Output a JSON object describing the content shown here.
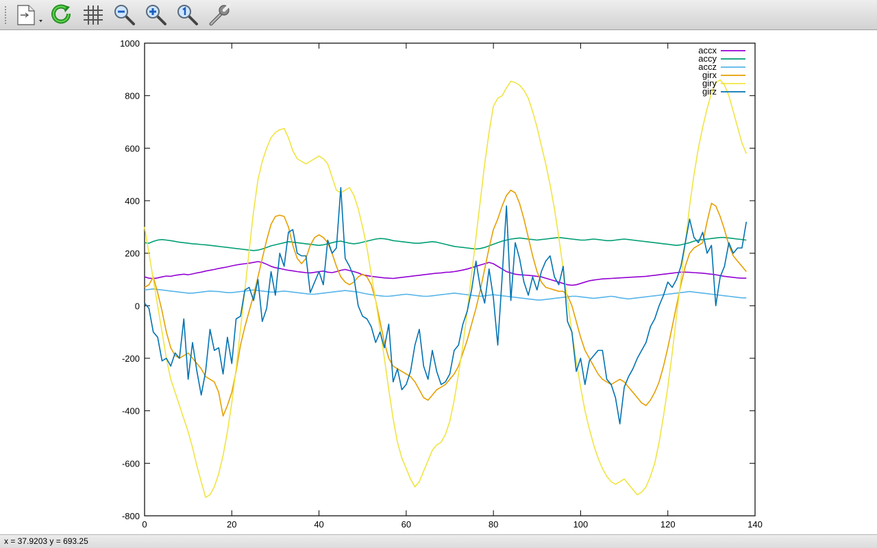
{
  "toolbar": {
    "items": [
      {
        "name": "export-menu-button",
        "icon": "document-export-icon"
      },
      {
        "name": "replot-button",
        "icon": "refresh-icon"
      },
      {
        "name": "grid-toggle-button",
        "icon": "grid-icon"
      },
      {
        "name": "zoom-out-button",
        "icon": "zoom-out-icon"
      },
      {
        "name": "zoom-in-button",
        "icon": "zoom-in-icon"
      },
      {
        "name": "zoom-reset-button",
        "icon": "zoom-original-icon"
      },
      {
        "name": "settings-button",
        "icon": "wrench-icon"
      }
    ]
  },
  "status": {
    "coordinates": "x = 37.9203 y = 693.25"
  },
  "chart_data": {
    "type": "line",
    "title": "",
    "xlabel": "",
    "ylabel": "",
    "xlim": [
      0,
      140
    ],
    "ylim": [
      -800,
      1000
    ],
    "xticks": [
      0,
      20,
      40,
      60,
      80,
      100,
      120,
      140
    ],
    "yticks": [
      -800,
      -600,
      -400,
      -200,
      0,
      200,
      400,
      600,
      800,
      1000
    ],
    "grid": false,
    "legend_position": "top-right",
    "x": [
      0,
      1,
      2,
      3,
      4,
      5,
      6,
      7,
      8,
      9,
      10,
      11,
      12,
      13,
      14,
      15,
      16,
      17,
      18,
      19,
      20,
      21,
      22,
      23,
      24,
      25,
      26,
      27,
      28,
      29,
      30,
      31,
      32,
      33,
      34,
      35,
      36,
      37,
      38,
      39,
      40,
      41,
      42,
      43,
      44,
      45,
      46,
      47,
      48,
      49,
      50,
      51,
      52,
      53,
      54,
      55,
      56,
      57,
      58,
      59,
      60,
      61,
      62,
      63,
      64,
      65,
      66,
      67,
      68,
      69,
      70,
      71,
      72,
      73,
      74,
      75,
      76,
      77,
      78,
      79,
      80,
      81,
      82,
      83,
      84,
      85,
      86,
      87,
      88,
      89,
      90,
      91,
      92,
      93,
      94,
      95,
      96,
      97,
      98,
      99,
      100,
      101,
      102,
      103,
      104,
      105,
      106,
      107,
      108,
      109,
      110,
      111,
      112,
      113,
      114,
      115,
      116,
      117,
      118,
      119,
      120,
      121,
      122,
      123,
      124,
      125,
      126,
      127,
      128,
      129,
      130,
      131,
      132,
      133,
      134,
      135,
      136,
      137,
      138
    ],
    "series": [
      {
        "name": "accx",
        "color": "#9400d3",
        "values": [
          110,
          105,
          103,
          106,
          110,
          113,
          112,
          116,
          118,
          120,
          118,
          121,
          125,
          128,
          132,
          135,
          138,
          142,
          145,
          148,
          152,
          155,
          158,
          160,
          162,
          165,
          168,
          165,
          158,
          150,
          145,
          142,
          138,
          135,
          133,
          130,
          128,
          126,
          125,
          127,
          130,
          132,
          128,
          126,
          130,
          135,
          138,
          134,
          130,
          125,
          118,
          115,
          112,
          110,
          108,
          106,
          105,
          104,
          106,
          108,
          110,
          112,
          114,
          116,
          118,
          120,
          122,
          124,
          125,
          127,
          128,
          130,
          133,
          136,
          140,
          145,
          150,
          155,
          160,
          165,
          160,
          150,
          140,
          130,
          125,
          120,
          118,
          117,
          116,
          114,
          112,
          110,
          105,
          100,
          95,
          90,
          85,
          80,
          78,
          80,
          85,
          90,
          95,
          98,
          100,
          102,
          103,
          104,
          105,
          106,
          107,
          108,
          109,
          110,
          111,
          112,
          114,
          116,
          118,
          120,
          122,
          124,
          126,
          128,
          128,
          127,
          126,
          125,
          124,
          122,
          120,
          118,
          115,
          112,
          110,
          108,
          106,
          105,
          105
        ]
      },
      {
        "name": "accy",
        "color": "#009e73",
        "values": [
          240,
          238,
          245,
          250,
          252,
          250,
          248,
          245,
          242,
          240,
          238,
          236,
          235,
          233,
          232,
          230,
          228,
          226,
          224,
          222,
          220,
          218,
          216,
          214,
          212,
          210,
          212,
          216,
          222,
          228,
          232,
          236,
          240,
          244,
          242,
          240,
          238,
          236,
          234,
          232,
          230,
          232,
          236,
          240,
          244,
          246,
          242,
          238,
          236,
          238,
          242,
          246,
          250,
          254,
          256,
          255,
          252,
          248,
          246,
          244,
          242,
          240,
          238,
          238,
          240,
          242,
          244,
          242,
          238,
          234,
          230,
          226,
          224,
          222,
          220,
          218,
          216,
          218,
          222,
          228,
          234,
          240,
          246,
          250,
          254,
          256,
          258,
          256,
          254,
          252,
          250,
          252,
          254,
          256,
          258,
          260,
          258,
          256,
          254,
          252,
          250,
          250,
          252,
          254,
          252,
          250,
          248,
          248,
          250,
          252,
          254,
          252,
          250,
          248,
          246,
          244,
          242,
          240,
          238,
          236,
          234,
          232,
          230,
          232,
          236,
          240,
          246,
          250,
          252,
          254,
          256,
          258,
          260,
          260,
          258,
          256,
          254,
          252,
          250
        ]
      },
      {
        "name": "accz",
        "color": "#56b4e9",
        "values": [
          60,
          62,
          64,
          62,
          60,
          58,
          56,
          54,
          52,
          50,
          48,
          48,
          50,
          52,
          54,
          56,
          55,
          54,
          52,
          50,
          50,
          52,
          54,
          56,
          58,
          60,
          58,
          56,
          54,
          52,
          52,
          54,
          56,
          54,
          52,
          50,
          48,
          46,
          44,
          44,
          46,
          48,
          50,
          52,
          54,
          56,
          58,
          56,
          54,
          52,
          48,
          45,
          42,
          40,
          38,
          36,
          36,
          38,
          40,
          42,
          44,
          42,
          40,
          38,
          36,
          36,
          38,
          40,
          42,
          44,
          46,
          48,
          46,
          44,
          42,
          40,
          38,
          36,
          38,
          40,
          42,
          40,
          38,
          36,
          34,
          32,
          30,
          28,
          26,
          24,
          22,
          22,
          24,
          26,
          28,
          30,
          32,
          34,
          36,
          36,
          34,
          32,
          30,
          28,
          30,
          32,
          34,
          36,
          34,
          30,
          28,
          26,
          28,
          30,
          32,
          34,
          36,
          38,
          40,
          42,
          44,
          46,
          48,
          50,
          52,
          54,
          52,
          50,
          48,
          46,
          44,
          42,
          40,
          38,
          36,
          34,
          32,
          30,
          30
        ]
      },
      {
        "name": "girx",
        "color": "#e69f00",
        "values": [
          70,
          80,
          110,
          50,
          -20,
          -100,
          -160,
          -190,
          -200,
          -190,
          -180,
          -200,
          -220,
          -240,
          -270,
          -280,
          -290,
          -330,
          -420,
          -380,
          -330,
          -250,
          -150,
          -80,
          -20,
          40,
          110,
          180,
          250,
          310,
          340,
          345,
          340,
          300,
          230,
          180,
          160,
          180,
          230,
          260,
          270,
          260,
          240,
          200,
          150,
          110,
          90,
          80,
          90,
          110,
          120,
          110,
          80,
          20,
          -60,
          -140,
          -200,
          -230,
          -240,
          -250,
          -260,
          -270,
          -290,
          -320,
          -350,
          -360,
          -340,
          -320,
          -310,
          -300,
          -280,
          -260,
          -230,
          -180,
          -130,
          -70,
          -10,
          60,
          140,
          220,
          290,
          330,
          380,
          420,
          440,
          430,
          390,
          330,
          260,
          190,
          130,
          90,
          70,
          65,
          60,
          55,
          55,
          40,
          0,
          -60,
          -120,
          -170,
          -200,
          -230,
          -260,
          -280,
          -290,
          -300,
          -290,
          -280,
          -290,
          -310,
          -330,
          -350,
          -370,
          -380,
          -360,
          -330,
          -290,
          -230,
          -160,
          -80,
          0,
          80,
          150,
          200,
          220,
          230,
          240,
          320,
          390,
          380,
          340,
          290,
          230,
          190,
          170,
          150,
          130
        ]
      },
      {
        "name": "giry",
        "color": "#f0e442",
        "values": [
          300,
          200,
          100,
          0,
          -100,
          -200,
          -280,
          -330,
          -380,
          -430,
          -480,
          -540,
          -610,
          -670,
          -730,
          -720,
          -690,
          -640,
          -570,
          -480,
          -370,
          -240,
          -90,
          60,
          210,
          360,
          480,
          550,
          600,
          640,
          660,
          670,
          675,
          640,
          590,
          560,
          550,
          540,
          550,
          560,
          570,
          560,
          540,
          490,
          440,
          430,
          440,
          450,
          420,
          370,
          300,
          220,
          120,
          20,
          -90,
          -200,
          -320,
          -430,
          -520,
          -580,
          -620,
          -660,
          -690,
          -670,
          -630,
          -590,
          -550,
          -530,
          -520,
          -490,
          -440,
          -360,
          -260,
          -150,
          -20,
          120,
          260,
          400,
          540,
          660,
          760,
          790,
          800,
          830,
          855,
          850,
          840,
          820,
          790,
          740,
          680,
          610,
          540,
          460,
          370,
          260,
          140,
          20,
          -100,
          -210,
          -310,
          -400,
          -470,
          -530,
          -580,
          -620,
          -650,
          -670,
          -680,
          -670,
          -660,
          -680,
          -700,
          -720,
          -710,
          -690,
          -650,
          -600,
          -520,
          -420,
          -310,
          -180,
          -40,
          100,
          240,
          380,
          500,
          600,
          680,
          750,
          810,
          850,
          860,
          840,
          800,
          740,
          680,
          620,
          580
        ]
      },
      {
        "name": "girz",
        "color": "#0072b2",
        "values": [
          10,
          -10,
          -100,
          -120,
          -210,
          -200,
          -230,
          -180,
          -200,
          -50,
          -280,
          -140,
          -250,
          -340,
          -250,
          -90,
          -170,
          -160,
          -260,
          -120,
          -220,
          -50,
          -40,
          60,
          70,
          20,
          100,
          -60,
          -10,
          130,
          40,
          200,
          150,
          280,
          290,
          200,
          190,
          190,
          50,
          90,
          130,
          80,
          250,
          200,
          220,
          450,
          180,
          150,
          110,
          0,
          -40,
          -50,
          -80,
          -140,
          -100,
          -160,
          -70,
          -290,
          -240,
          -320,
          -300,
          -250,
          -150,
          -90,
          -230,
          -280,
          -170,
          -250,
          -300,
          -290,
          -260,
          -170,
          -150,
          -70,
          -20,
          60,
          170,
          70,
          10,
          140,
          30,
          -150,
          110,
          380,
          20,
          240,
          180,
          90,
          40,
          110,
          60,
          130,
          170,
          190,
          110,
          80,
          150,
          -60,
          -100,
          -250,
          -200,
          -300,
          -210,
          -190,
          -170,
          -170,
          -280,
          -300,
          -350,
          -450,
          -310,
          -270,
          -240,
          -200,
          -170,
          -140,
          -80,
          -50,
          0,
          40,
          90,
          70,
          100,
          150,
          240,
          330,
          260,
          240,
          280,
          200,
          230,
          0,
          110,
          150,
          240,
          200,
          220,
          220,
          320
        ]
      }
    ]
  }
}
